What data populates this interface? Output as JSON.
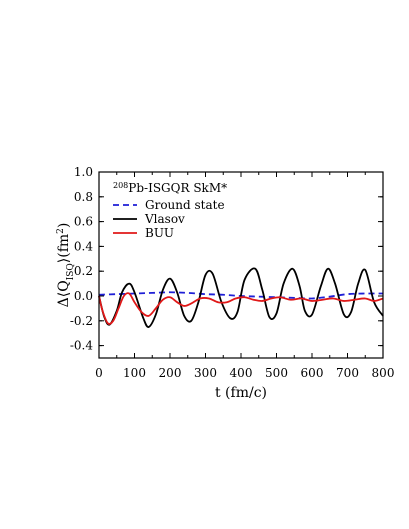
{
  "chart_data": {
    "type": "line",
    "title_pre": "208",
    "title_main": "Pb-ISGQR SkM*",
    "xlabel": "t (fm/c)",
    "ylabel_parts": {
      "a": "Δ⟨Q",
      "sub": "ISQ",
      "b": "⟩(fm",
      "sup": "2",
      "c": ")"
    },
    "xlim": [
      0,
      800
    ],
    "ylim": [
      -0.5,
      1.0
    ],
    "xticks": [
      0,
      100,
      200,
      300,
      400,
      500,
      600,
      700,
      800
    ],
    "xtick_labels": [
      "0",
      "100",
      "200",
      "300",
      "400",
      "500",
      "600",
      "700",
      "800"
    ],
    "yticks": [
      -0.4,
      -0.2,
      0.0,
      0.2,
      0.4,
      0.6,
      0.8,
      1.0
    ],
    "ytick_labels": [
      "-0.4",
      "-0.2",
      "0.0",
      "0.2",
      "0.4",
      "0.6",
      "0.8",
      "1.0"
    ],
    "grid": false,
    "legend_position": "top-left",
    "series": [
      {
        "name": "Ground state",
        "color": "#1f1fd6",
        "dash": "dashed",
        "x": [
          0,
          50,
          100,
          150,
          200,
          250,
          300,
          350,
          400,
          450,
          500,
          550,
          600,
          650,
          700,
          750,
          800
        ],
        "y": [
          0.01,
          0.015,
          0.02,
          0.025,
          0.03,
          0.025,
          0.015,
          0.01,
          0.0,
          -0.005,
          -0.01,
          -0.015,
          -0.02,
          -0.005,
          0.015,
          0.02,
          0.02
        ]
      },
      {
        "name": "Vlasov",
        "color": "#000000",
        "dash": "solid",
        "x": [
          0,
          15,
          30,
          50,
          65,
          85,
          100,
          125,
          140,
          160,
          180,
          200,
          220,
          240,
          260,
          280,
          300,
          320,
          345,
          370,
          390,
          410,
          440,
          460,
          480,
          500,
          520,
          545,
          565,
          580,
          600,
          625,
          645,
          665,
          690,
          710,
          730,
          750,
          775,
          800
        ],
        "y": [
          0.0,
          -0.17,
          -0.23,
          -0.12,
          0.03,
          0.1,
          0.03,
          -0.18,
          -0.25,
          -0.15,
          0.05,
          0.14,
          0.03,
          -0.16,
          -0.2,
          -0.05,
          0.17,
          0.18,
          -0.05,
          -0.18,
          -0.13,
          0.13,
          0.22,
          0.05,
          -0.17,
          -0.14,
          0.1,
          0.22,
          0.08,
          -0.12,
          -0.15,
          0.08,
          0.22,
          0.1,
          -0.15,
          -0.13,
          0.1,
          0.21,
          -0.05,
          -0.16
        ]
      },
      {
        "name": "BUU",
        "color": "#e01818",
        "dash": "solid",
        "x": [
          0,
          10,
          25,
          40,
          55,
          70,
          85,
          100,
          120,
          140,
          160,
          180,
          200,
          220,
          240,
          260,
          285,
          310,
          335,
          360,
          385,
          410,
          435,
          460,
          485,
          510,
          540,
          570,
          600,
          630,
          660,
          690,
          720,
          750,
          775,
          800
        ],
        "y": [
          0.0,
          -0.12,
          -0.22,
          -0.2,
          -0.1,
          0.0,
          0.02,
          -0.05,
          -0.13,
          -0.16,
          -0.1,
          -0.03,
          -0.01,
          -0.05,
          -0.08,
          -0.06,
          -0.02,
          -0.02,
          -0.05,
          -0.05,
          -0.02,
          -0.01,
          -0.03,
          -0.04,
          -0.02,
          -0.01,
          -0.03,
          -0.02,
          -0.04,
          -0.03,
          -0.02,
          -0.04,
          -0.03,
          -0.02,
          -0.04,
          -0.02
        ]
      }
    ]
  }
}
